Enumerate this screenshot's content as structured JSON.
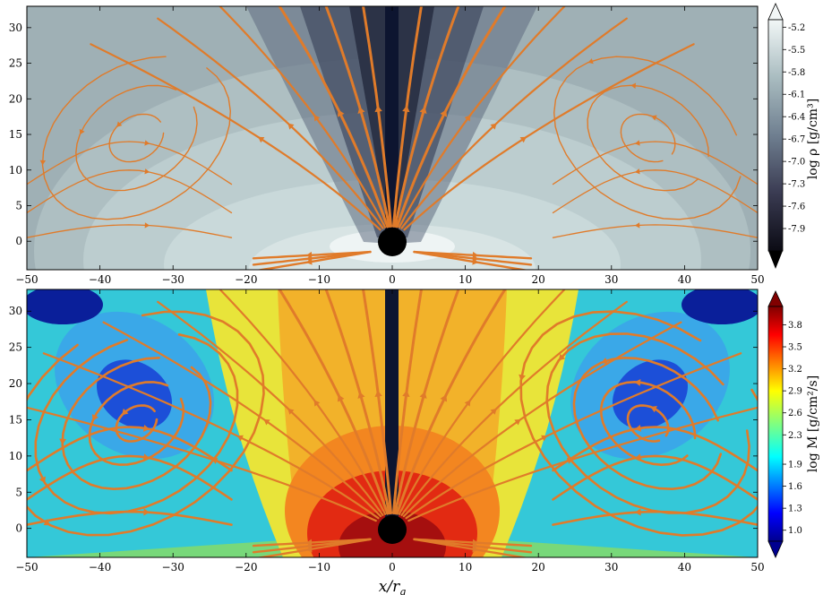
{
  "chart_data": [
    {
      "type": "heatmap",
      "quantity": "density",
      "xlim": [
        -50,
        50
      ],
      "ylim": [
        -4,
        33
      ],
      "xticks": [
        "−50",
        "−40",
        "−30",
        "−20",
        "−10",
        "0",
        "10",
        "20",
        "30",
        "40",
        "50"
      ],
      "yticks": [
        "0",
        "5",
        "10",
        "15",
        "20",
        "25",
        "30"
      ],
      "colorbar": {
        "label": "log ρ [g/cm³]",
        "ticks": [
          "-5.2",
          "-5.5",
          "-5.8",
          "-6.1",
          "-6.4",
          "-6.7",
          "-7.0",
          "-7.3",
          "-7.6",
          "-7.9"
        ],
        "range": [
          -8.2,
          -5.1
        ],
        "colormap": "bone"
      },
      "black_hole": {
        "x": 0,
        "y": 0,
        "radius": 2
      },
      "streamline_color": "#e07b2a"
    },
    {
      "type": "heatmap",
      "quantity": "mass flux",
      "xlim": [
        -50,
        50
      ],
      "ylim": [
        -4,
        33
      ],
      "xticks": [
        "−50",
        "−40",
        "−30",
        "−20",
        "−10",
        "0",
        "10",
        "20",
        "30",
        "40",
        "50"
      ],
      "yticks": [
        "0",
        "5",
        "10",
        "15",
        "20",
        "25",
        "30"
      ],
      "xlabel": "x/r_g",
      "colorbar": {
        "label": "log M [g/cm²/s]",
        "ticks": [
          "3.8",
          "3.5",
          "3.2",
          "2.9",
          "2.6",
          "2.3",
          "1.9",
          "1.6",
          "1.3",
          "1.0"
        ],
        "range": [
          0.85,
          4.05
        ],
        "colormap": "jet"
      },
      "black_hole": {
        "x": 0,
        "y": 0,
        "radius": 2
      },
      "vortex_centers": [
        {
          "x": -35,
          "y": 14.5
        },
        {
          "x": 35,
          "y": 14.5
        }
      ],
      "streamline_color": "#e07b2a"
    }
  ],
  "labels": {
    "xlabel_main": "x/r",
    "xlabel_sub": "g",
    "cb1_label": "log ρ [g/cm³]",
    "cb2_label": "log M [g/cm²/s]"
  },
  "icons": {
    "black_hole": "black-hole-icon"
  }
}
